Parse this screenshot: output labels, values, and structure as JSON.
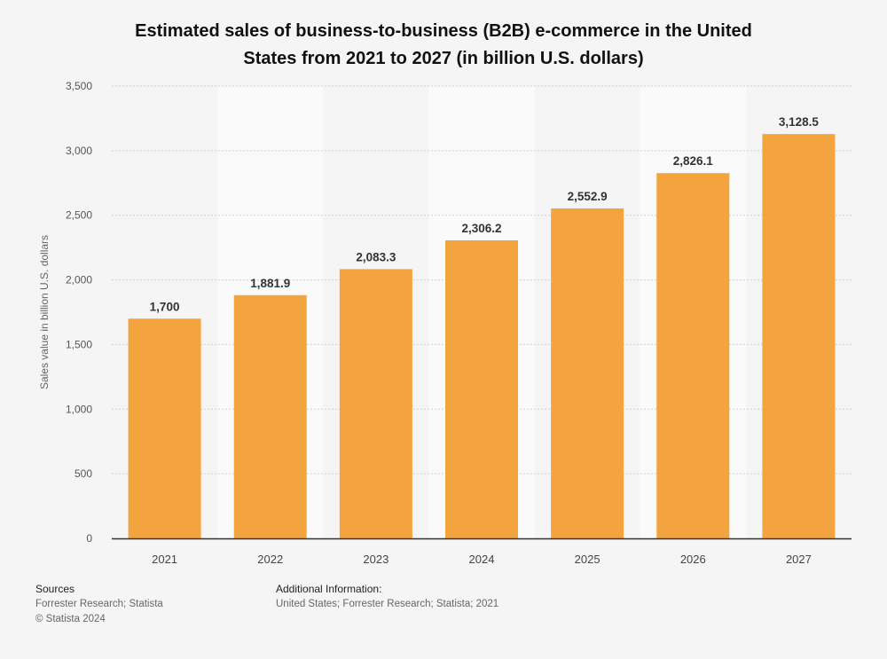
{
  "chart_data": {
    "type": "bar",
    "title_line1": "Estimated sales of business-to-business (B2B) e-commerce in the United",
    "title_line2": "States from 2021 to 2027 (in billion U.S. dollars)",
    "xlabel": "",
    "ylabel": "Sales value in billion U.S. dollars",
    "categories": [
      "2021",
      "2022",
      "2023",
      "2024",
      "2025",
      "2026",
      "2027"
    ],
    "values": [
      1700,
      1881.9,
      2083.3,
      2306.2,
      2552.9,
      2826.1,
      3128.5
    ],
    "value_labels": [
      "1,700",
      "1,881.9",
      "2,083.3",
      "2,306.2",
      "2,552.9",
      "2,826.1",
      "3,128.5"
    ],
    "ylim": [
      0,
      3500
    ],
    "yticks": [
      0,
      500,
      1000,
      1500,
      2000,
      2500,
      3000,
      3500
    ],
    "ytick_labels": [
      "0",
      "500",
      "1,000",
      "1,500",
      "2,000",
      "2,500",
      "3,000",
      "3,500"
    ],
    "grid": true,
    "bar_color": "#f3a43f"
  },
  "footer": {
    "sources_heading": "Sources",
    "sources_text": "Forrester Research; Statista",
    "copyright": "© Statista 2024",
    "additional_heading": "Additional Information:",
    "additional_text": "United States; Forrester Research; Statista; 2021"
  }
}
